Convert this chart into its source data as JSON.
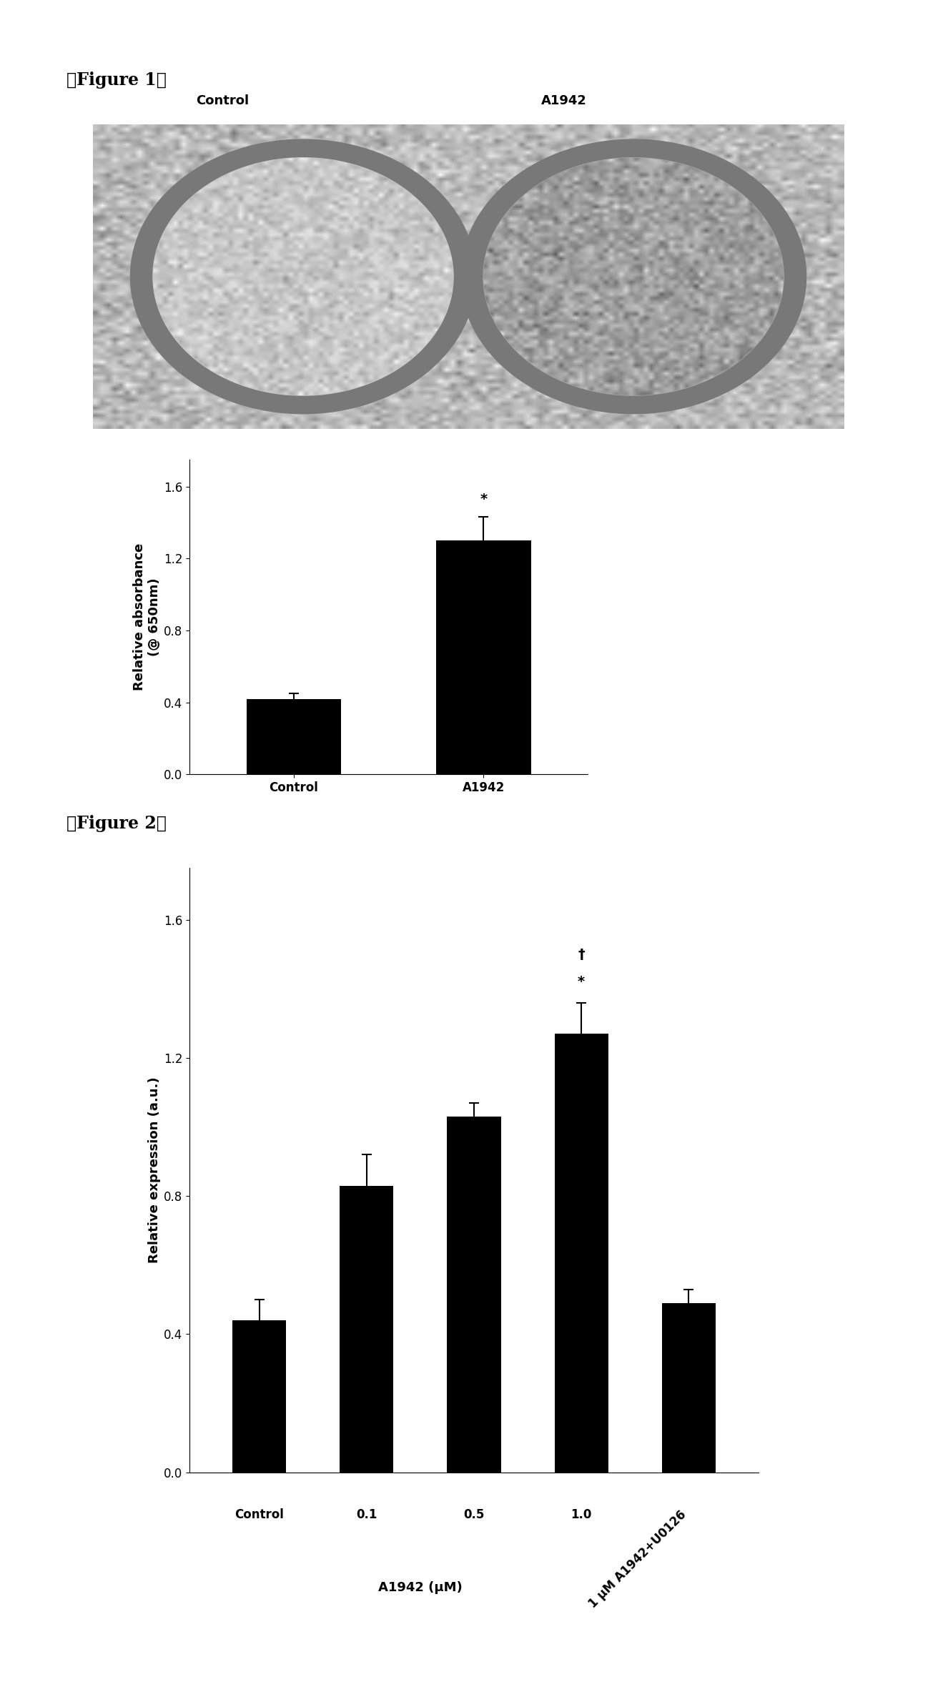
{
  "fig1_label": "【Figure 1】",
  "fig2_label": "【Figure 2】",
  "fig1_bar_categories": [
    "Control",
    "A1942"
  ],
  "fig1_bar_values": [
    0.42,
    1.3
  ],
  "fig1_bar_errors": [
    0.03,
    0.13
  ],
  "fig1_ylabel1": "Relative absorbance",
  "fig1_ylabel2": "(@ 650nm)",
  "fig1_ylim": [
    0,
    1.75
  ],
  "fig1_yticks": [
    0,
    0.4,
    0.8,
    1.2,
    1.6
  ],
  "fig1_star_label": "*",
  "fig1_img_label_control": "Control",
  "fig1_img_label_a1942": "A1942",
  "fig2_bar_values": [
    0.44,
    0.83,
    1.03,
    1.27,
    0.49
  ],
  "fig2_bar_errors": [
    0.06,
    0.09,
    0.04,
    0.09,
    0.04
  ],
  "fig2_ylabel": "Relative expression (a.u.)",
  "fig2_xlabel": "A1942 (μM)",
  "fig2_ylim": [
    0,
    1.75
  ],
  "fig2_yticks": [
    0,
    0.4,
    0.8,
    1.2,
    1.6
  ],
  "fig2_star_label": "*",
  "fig2_dagger_label": "†",
  "fig2_xtick_labels": [
    "Control",
    "0.1",
    "0.5",
    "1.0",
    "1 μM A1942+U0126"
  ],
  "bar_color": "#000000",
  "background_color": "#ffffff",
  "img_bg_color": "#b8b8b8",
  "img_ring_color": "#888888",
  "img_inner_left_color": "#d0d0d0",
  "img_inner_right_color": "#b0b0b0",
  "font_size_label": 13,
  "font_size_tick": 12,
  "font_size_fig_label": 17,
  "font_size_img_label": 13
}
